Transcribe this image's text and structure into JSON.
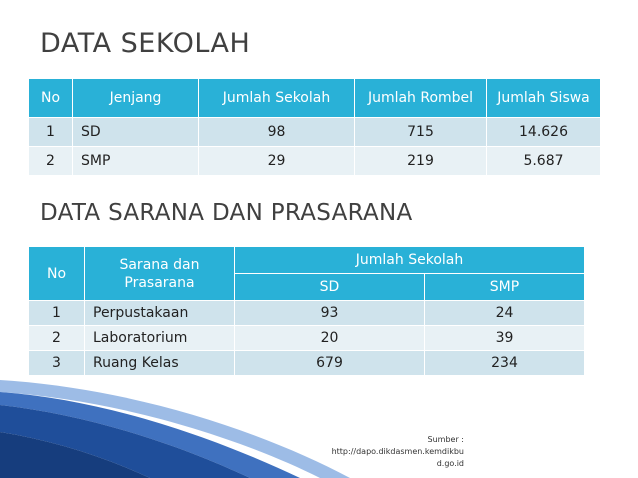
{
  "section1": {
    "title": "DATA SEKOLAH",
    "headers": [
      "No",
      "Jenjang",
      "Jumlah Sekolah",
      "Jumlah Rombel",
      "Jumlah Siswa"
    ],
    "rows": [
      {
        "no": "1",
        "jenjang": "SD",
        "sekolah": "98",
        "rombel": "715",
        "siswa": "14.626"
      },
      {
        "no": "2",
        "jenjang": "SMP",
        "sekolah": "29",
        "rombel": "219",
        "siswa": "5.687"
      }
    ]
  },
  "section2": {
    "title": "DATA SARANA DAN PRASARANA",
    "headers": {
      "no": "No",
      "sarana": "Sarana dan Prasarana",
      "group": "Jumlah Sekolah",
      "sd": "SD",
      "smp": "SMP"
    },
    "rows": [
      {
        "no": "1",
        "sarana": "Perpustakaan",
        "sd": "93",
        "smp": "24"
      },
      {
        "no": "2",
        "sarana": "Laboratorium",
        "sd": "20",
        "smp": "39"
      },
      {
        "no": "3",
        "sarana": "Ruang Kelas",
        "sd": "679",
        "smp": "234"
      }
    ]
  },
  "source": {
    "line1": "Sumber :",
    "line2": "http://dapo.dikdasmen.kemdikbu",
    "line3": "d.go.id"
  },
  "colors": {
    "header": "#29b1d7",
    "row_dark": "#cfe3ec",
    "row_light": "#e8f1f5",
    "swoosh": "#1f4e9a"
  }
}
